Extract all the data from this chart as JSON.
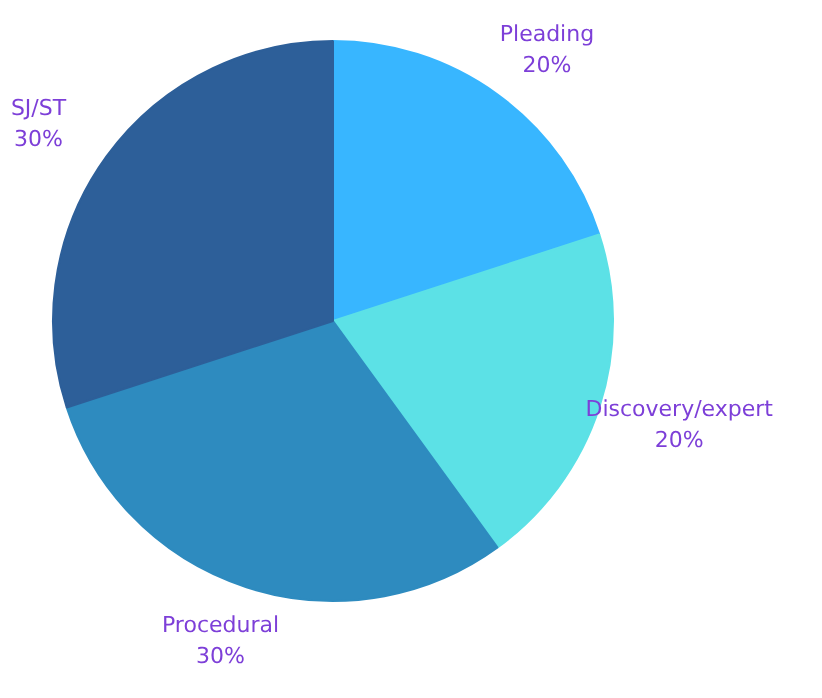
{
  "chart_data": {
    "type": "pie",
    "categories": [
      "Pleading",
      "Discovery/expert",
      "Procedural",
      "SJ/ST"
    ],
    "values": [
      20,
      20,
      30,
      30
    ],
    "colors": [
      "#38b6ff",
      "#5ce1e6",
      "#2e8bbf",
      "#2d5f99"
    ],
    "value_labels": [
      "20%",
      "20%",
      "30%",
      "30%"
    ]
  }
}
